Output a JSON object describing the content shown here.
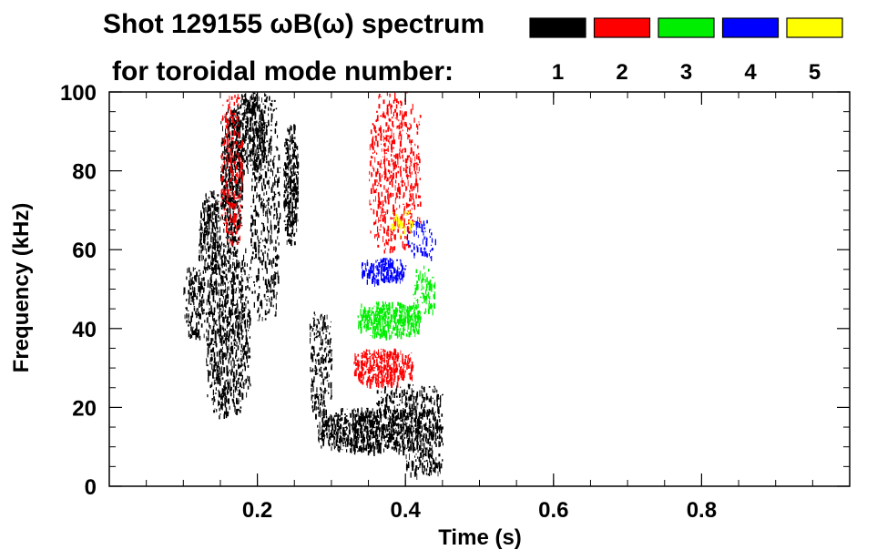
{
  "chart_data": {
    "type": "heatmap",
    "title": "Shot 129155 ωB(ω) spectrum",
    "subtitle": "for toroidal mode number:",
    "xlabel": "Time (s)",
    "ylabel": "Frequency (kHz)",
    "xlim": [
      0.0,
      1.0
    ],
    "ylim": [
      0,
      100
    ],
    "x_ticks": [
      0.2,
      0.4,
      0.6,
      0.8
    ],
    "x_tick_labels": [
      "0.2",
      "0.4",
      "0.6",
      "0.8"
    ],
    "y_ticks": [
      0,
      20,
      40,
      60,
      80,
      100
    ],
    "y_tick_labels": [
      "0",
      "20",
      "40",
      "60",
      "80",
      "100"
    ],
    "grid": false,
    "legend": {
      "placement": "top-right",
      "entries": [
        {
          "label": "1",
          "color": "#000000"
        },
        {
          "label": "2",
          "color": "#ff0000"
        },
        {
          "label": "3",
          "color": "#00ee00"
        },
        {
          "label": "4",
          "color": "#0000ff"
        },
        {
          "label": "5",
          "color": "#ffff00"
        }
      ]
    },
    "series": [
      {
        "name": "1",
        "color": "#000000",
        "regions": [
          {
            "t": [
              0.1,
              0.13
            ],
            "f": [
              38,
              56
            ],
            "density": 0.5
          },
          {
            "t": [
              0.12,
              0.15
            ],
            "f": [
              55,
              75
            ],
            "density": 0.75
          },
          {
            "t": [
              0.15,
              0.18
            ],
            "f": [
              62,
              96
            ],
            "density": 0.8
          },
          {
            "t": [
              0.17,
              0.21
            ],
            "f": [
              80,
              100
            ],
            "density": 0.8
          },
          {
            "t": [
              0.13,
              0.19
            ],
            "f": [
              18,
              62
            ],
            "density": 0.55
          },
          {
            "t": [
              0.19,
              0.23
            ],
            "f": [
              42,
              100
            ],
            "density": 0.35
          },
          {
            "t": [
              0.235,
              0.255
            ],
            "f": [
              62,
              92
            ],
            "density": 0.85
          },
          {
            "t": [
              0.27,
              0.3
            ],
            "f": [
              18,
              45
            ],
            "density": 0.45
          },
          {
            "t": [
              0.28,
              0.45
            ],
            "f": [
              9,
              20
            ],
            "density": 0.88
          },
          {
            "t": [
              0.36,
              0.45
            ],
            "f": [
              18,
              26
            ],
            "density": 0.5
          },
          {
            "t": [
              0.4,
              0.45
            ],
            "f": [
              3,
              10
            ],
            "density": 0.5
          }
        ]
      },
      {
        "name": "2",
        "color": "#ff0000",
        "regions": [
          {
            "t": [
              0.15,
              0.18
            ],
            "f": [
              62,
              100
            ],
            "density": 0.35
          },
          {
            "t": [
              0.33,
              0.41
            ],
            "f": [
              26,
              35
            ],
            "density": 0.92
          },
          {
            "t": [
              0.35,
              0.42
            ],
            "f": [
              60,
              100
            ],
            "density": 0.35
          }
        ]
      },
      {
        "name": "3",
        "color": "#00ee00",
        "regions": [
          {
            "t": [
              0.335,
              0.42
            ],
            "f": [
              38,
              47
            ],
            "density": 0.9
          },
          {
            "t": [
              0.41,
              0.44
            ],
            "f": [
              44,
              56
            ],
            "density": 0.55
          }
        ]
      },
      {
        "name": "4",
        "color": "#0000ff",
        "regions": [
          {
            "t": [
              0.34,
              0.4
            ],
            "f": [
              52,
              58
            ],
            "density": 0.85
          },
          {
            "t": [
              0.4,
              0.44
            ],
            "f": [
              58,
              68
            ],
            "density": 0.3
          }
        ]
      },
      {
        "name": "5",
        "color": "#ffff00",
        "regions": [
          {
            "t": [
              0.38,
              0.41
            ],
            "f": [
              64,
              70
            ],
            "density": 0.4
          }
        ]
      }
    ]
  }
}
